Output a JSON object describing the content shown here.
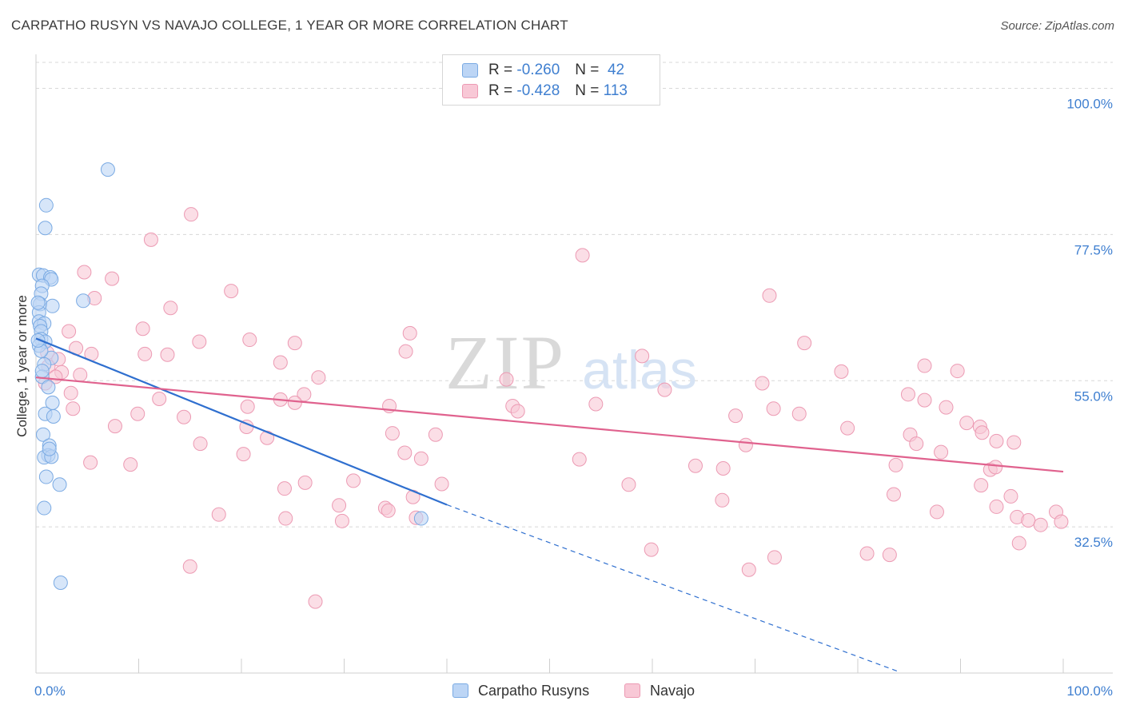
{
  "title": "CARPATHO RUSYN VS NAVAJO COLLEGE, 1 YEAR OR MORE CORRELATION CHART",
  "source": "Source: ZipAtlas.com",
  "watermark": {
    "zip": "ZIP",
    "atlas": "atlas"
  },
  "legend": {
    "rows": [
      {
        "r_label": "R =",
        "r_value": "-0.260",
        "n_label": "N =",
        "n_value": "42"
      },
      {
        "r_label": "R =",
        "r_value": "-0.428",
        "n_label": "N =",
        "n_value": "113"
      }
    ]
  },
  "colors": {
    "blue_fill": "#bcd5f5",
    "blue_stroke": "#7aaae3",
    "blue_line": "#2f6fcf",
    "pink_fill": "#f8c8d6",
    "pink_stroke": "#ec9ab3",
    "pink_line": "#e0628e",
    "tick_text": "#3f7fd0",
    "grid": "#d8d8d8"
  },
  "chart_data": {
    "type": "scatter",
    "title": "CARPATHO RUSYN VS NAVAJO COLLEGE, 1 YEAR OR MORE CORRELATION CHART",
    "xlabel": "",
    "ylabel": "College, 1 year or more",
    "xlim": [
      0,
      100
    ],
    "ylim": [
      10,
      104
    ],
    "x_tick_labels": [
      "0.0%",
      "100.0%"
    ],
    "y_ticks": [
      32.5,
      55.0,
      77.5,
      100.0
    ],
    "y_tick_labels": [
      "32.5%",
      "55.0%",
      "77.5%",
      "100.0%"
    ],
    "legend_placement": "top-center",
    "series": [
      {
        "name": "Carpatho Rusyns",
        "color": "blue",
        "R": -0.26,
        "N": 42,
        "points": [
          [
            7.0,
            87.5
          ],
          [
            1.0,
            82.0
          ],
          [
            0.9,
            78.5
          ],
          [
            0.3,
            71.3
          ],
          [
            0.7,
            71.2
          ],
          [
            1.4,
            70.9
          ],
          [
            1.5,
            70.6
          ],
          [
            0.6,
            69.6
          ],
          [
            0.5,
            68.4
          ],
          [
            0.4,
            66.8
          ],
          [
            1.6,
            66.5
          ],
          [
            4.6,
            67.3
          ],
          [
            0.3,
            65.5
          ],
          [
            0.3,
            64.1
          ],
          [
            0.8,
            63.8
          ],
          [
            0.4,
            63.4
          ],
          [
            0.5,
            62.6
          ],
          [
            0.5,
            61.4
          ],
          [
            0.9,
            61.0
          ],
          [
            0.3,
            60.4
          ],
          [
            1.5,
            58.5
          ],
          [
            0.8,
            57.5
          ],
          [
            0.6,
            55.6
          ],
          [
            1.2,
            54.0
          ],
          [
            1.6,
            51.6
          ],
          [
            0.9,
            49.9
          ],
          [
            1.7,
            49.5
          ],
          [
            0.7,
            46.7
          ],
          [
            1.3,
            45.0
          ],
          [
            1.2,
            43.5
          ],
          [
            0.8,
            43.2
          ],
          [
            1.5,
            43.3
          ],
          [
            1.3,
            44.5
          ],
          [
            1.0,
            40.2
          ],
          [
            2.3,
            39.0
          ],
          [
            0.8,
            35.4
          ],
          [
            37.5,
            33.8
          ],
          [
            2.4,
            23.9
          ],
          [
            0.5,
            59.6
          ],
          [
            0.2,
            67.0
          ],
          [
            0.2,
            61.2
          ],
          [
            0.6,
            56.5
          ]
        ]
      },
      {
        "name": "Navajo",
        "color": "pink",
        "R": -0.428,
        "N": 113,
        "points": [
          [
            15.1,
            80.6
          ],
          [
            11.2,
            76.7
          ],
          [
            53.2,
            74.3
          ],
          [
            4.7,
            71.7
          ],
          [
            7.4,
            70.7
          ],
          [
            19.0,
            68.8
          ],
          [
            5.7,
            67.7
          ],
          [
            13.1,
            66.2
          ],
          [
            71.4,
            68.1
          ],
          [
            10.4,
            63.0
          ],
          [
            3.2,
            62.6
          ],
          [
            36.4,
            62.3
          ],
          [
            15.9,
            61.0
          ],
          [
            20.8,
            61.3
          ],
          [
            25.2,
            60.8
          ],
          [
            3.9,
            60.0
          ],
          [
            74.8,
            60.8
          ],
          [
            36.0,
            59.5
          ],
          [
            1.1,
            59.3
          ],
          [
            5.4,
            59.1
          ],
          [
            10.6,
            59.1
          ],
          [
            12.8,
            59.0
          ],
          [
            59.0,
            58.8
          ],
          [
            2.2,
            58.3
          ],
          [
            1.2,
            57.2
          ],
          [
            23.8,
            57.8
          ],
          [
            2.5,
            56.3
          ],
          [
            4.3,
            55.9
          ],
          [
            86.5,
            57.3
          ],
          [
            1.9,
            55.6
          ],
          [
            78.4,
            56.4
          ],
          [
            89.7,
            56.5
          ],
          [
            27.5,
            55.5
          ],
          [
            45.8,
            55.2
          ],
          [
            70.7,
            54.6
          ],
          [
            0.9,
            54.6
          ],
          [
            3.4,
            53.1
          ],
          [
            61.2,
            53.6
          ],
          [
            84.9,
            52.9
          ],
          [
            12.0,
            52.2
          ],
          [
            23.8,
            52.1
          ],
          [
            26.1,
            52.9
          ],
          [
            86.5,
            52.0
          ],
          [
            34.4,
            51.1
          ],
          [
            25.2,
            51.6
          ],
          [
            20.6,
            51.0
          ],
          [
            54.5,
            51.4
          ],
          [
            46.4,
            51.1
          ],
          [
            71.8,
            50.7
          ],
          [
            88.6,
            50.9
          ],
          [
            46.9,
            50.3
          ],
          [
            9.9,
            49.9
          ],
          [
            3.6,
            50.7
          ],
          [
            68.1,
            49.6
          ],
          [
            74.3,
            49.9
          ],
          [
            14.4,
            49.4
          ],
          [
            90.6,
            48.5
          ],
          [
            91.9,
            47.9
          ],
          [
            7.7,
            48.0
          ],
          [
            20.5,
            47.9
          ],
          [
            79.0,
            47.7
          ],
          [
            92.1,
            47.0
          ],
          [
            85.1,
            46.7
          ],
          [
            38.9,
            46.7
          ],
          [
            34.7,
            46.9
          ],
          [
            22.5,
            46.2
          ],
          [
            16.0,
            45.3
          ],
          [
            69.1,
            45.1
          ],
          [
            95.2,
            45.5
          ],
          [
            93.5,
            45.7
          ],
          [
            85.7,
            45.3
          ],
          [
            88.1,
            44.0
          ],
          [
            20.2,
            43.7
          ],
          [
            35.9,
            43.9
          ],
          [
            37.5,
            43.0
          ],
          [
            52.9,
            42.9
          ],
          [
            83.7,
            42.0
          ],
          [
            64.2,
            41.9
          ],
          [
            66.9,
            41.5
          ],
          [
            92.9,
            41.3
          ],
          [
            93.4,
            41.7
          ],
          [
            5.3,
            42.4
          ],
          [
            9.2,
            42.1
          ],
          [
            92.0,
            38.9
          ],
          [
            24.2,
            38.4
          ],
          [
            30.9,
            39.6
          ],
          [
            26.2,
            39.3
          ],
          [
            39.5,
            39.1
          ],
          [
            83.5,
            37.5
          ],
          [
            36.7,
            37.1
          ],
          [
            94.9,
            37.2
          ],
          [
            57.7,
            39.0
          ],
          [
            29.5,
            35.8
          ],
          [
            66.8,
            36.6
          ],
          [
            34.0,
            35.4
          ],
          [
            34.3,
            35.0
          ],
          [
            93.5,
            35.6
          ],
          [
            87.7,
            34.8
          ],
          [
            17.8,
            34.4
          ],
          [
            37.0,
            33.9
          ],
          [
            24.3,
            33.8
          ],
          [
            29.8,
            33.4
          ],
          [
            95.5,
            34.0
          ],
          [
            96.6,
            33.5
          ],
          [
            97.8,
            32.8
          ],
          [
            99.3,
            34.8
          ],
          [
            99.8,
            33.3
          ],
          [
            59.9,
            29.0
          ],
          [
            83.1,
            28.2
          ],
          [
            95.7,
            30.0
          ],
          [
            71.9,
            27.8
          ],
          [
            15.0,
            26.4
          ],
          [
            80.9,
            28.4
          ],
          [
            27.2,
            21.0
          ],
          [
            69.4,
            25.9
          ]
        ]
      }
    ],
    "trend_lines": [
      {
        "series": "Carpatho Rusyns",
        "x_start": 0,
        "y_start": 61.5,
        "x_end": 40,
        "y_end": 35.9,
        "dashed_to_x": 84,
        "dashed_to_y": 10.2
      },
      {
        "series": "Navajo",
        "x_start": 0,
        "y_start": 55.5,
        "x_end": 100,
        "y_end": 41.0
      }
    ]
  },
  "bottom_legend": {
    "items": [
      {
        "label": "Carpatho Rusyns"
      },
      {
        "label": "Navajo"
      }
    ]
  }
}
